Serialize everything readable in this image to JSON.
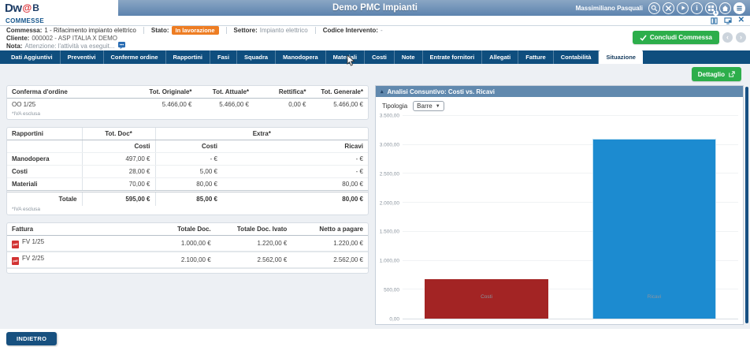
{
  "header": {
    "logo_part1": "Dw",
    "logo_at": "@",
    "logo_part2": "B",
    "title": "Demo PMC Impianti",
    "user": "Massimiliano Pasquali",
    "apps_badge": "1",
    "icon_names": [
      "search-icon",
      "tools-icon",
      "play-icon",
      "info-icon",
      "apps-grid-icon",
      "home-icon",
      "menu-icon"
    ]
  },
  "module": {
    "title": "COMMESSE"
  },
  "info": {
    "commessa_label": "Commessa:",
    "commessa_value": "1 - Rifacimento impianto elettrico",
    "stato_label": "Stato:",
    "stato_badge": "In lavorazione",
    "settore_label": "Settore:",
    "settore_value": "Impianto elettrico",
    "codice_label": "Codice Intervento:",
    "codice_value": "-",
    "cliente_label": "Cliente:",
    "cliente_value": "000002 - ASP ITALIA X DEMO",
    "nota_label": "Nota:",
    "nota_value": "Attenzione: l'attività va eseguit...",
    "concludi_label": "Concludi Commessa"
  },
  "tabs": {
    "items": [
      "Dati Aggiuntivi",
      "Preventivi",
      "Conferme ordine",
      "Rapportini",
      "Fasi",
      "Squadra",
      "Manodopera",
      "Materiali",
      "Costi",
      "Note",
      "Entrate fornitori",
      "Allegati",
      "Fatture",
      "Contabilità",
      "Situazione"
    ],
    "active": "Situazione"
  },
  "actions": {
    "dettaglio_label": "Dettaglio",
    "indietro_label": "INDIETRO"
  },
  "conferma_ordine": {
    "title": "Conferma d'ordine",
    "headers": [
      "Tot. Originale*",
      "Tot. Attuale*",
      "Rettifica*",
      "Tot. Generale*"
    ],
    "row": {
      "label": "OO 1/25",
      "v1": "5.466,00 €",
      "v2": "5.466,00 €",
      "v3": "0,00 €",
      "v4": "5.466,00 €"
    },
    "footnote": "*IVA esclusa"
  },
  "rapportini": {
    "title": "Rapportini",
    "col_totdoc": "Tot. Doc*",
    "col_extra": "Extra*",
    "sub1": "Costi",
    "sub2": "Costi",
    "sub3": "Ricavi",
    "rows": [
      {
        "label": "Manodopera",
        "v1": "497,00 €",
        "v2": "- €",
        "v3": "- €"
      },
      {
        "label": "Costi",
        "v1": "28,00 €",
        "v2": "5,00 €",
        "v3": "- €"
      },
      {
        "label": "Materiali",
        "v1": "70,00 €",
        "v2": "80,00 €",
        "v3": "80,00 €"
      }
    ],
    "total": {
      "label": "Totale",
      "v1": "595,00 €",
      "v2": "85,00 €",
      "v3": "80,00 €"
    },
    "footnote": "*IVA esclusa"
  },
  "fatture": {
    "headers": [
      "Fattura",
      "Totale Doc.",
      "Totale Doc. Ivato",
      "Netto a pagare"
    ],
    "rows": [
      {
        "label": "FV 1/25",
        "v1": "1.000,00 €",
        "v2": "1.220,00 €",
        "v3": "1.220,00 €"
      },
      {
        "label": "FV 2/25",
        "v1": "2.100,00 €",
        "v2": "2.562,00 €",
        "v3": "2.562,00 €"
      }
    ]
  },
  "chart_panel": {
    "title": "Analisi Consuntivo: Costi vs. Ricavi",
    "tipologia_label": "Tipologia",
    "tipologia_value": "Barre"
  },
  "chart_data": {
    "type": "bar",
    "title": "Analisi Consuntivo: Costi vs. Ricavi",
    "categories": [
      "Costi",
      "Ricavi"
    ],
    "values": [
      680,
      3100
    ],
    "colors": [
      "#a32424",
      "#1c8bd0"
    ],
    "xlabel": "",
    "ylabel": "",
    "ylim": [
      0,
      3500
    ],
    "grid": true,
    "legend": false,
    "yticks": [
      {
        "v": 0,
        "label": "0,00"
      },
      {
        "v": 500,
        "label": "500,00"
      },
      {
        "v": 1000,
        "label": "1.000,00"
      },
      {
        "v": 1500,
        "label": "1.500,00"
      },
      {
        "v": 2000,
        "label": "2.000,00"
      },
      {
        "v": 2500,
        "label": "2.500,00"
      },
      {
        "v": 3000,
        "label": "3.000,00"
      },
      {
        "v": 3500,
        "label": "3.500,00"
      }
    ]
  }
}
